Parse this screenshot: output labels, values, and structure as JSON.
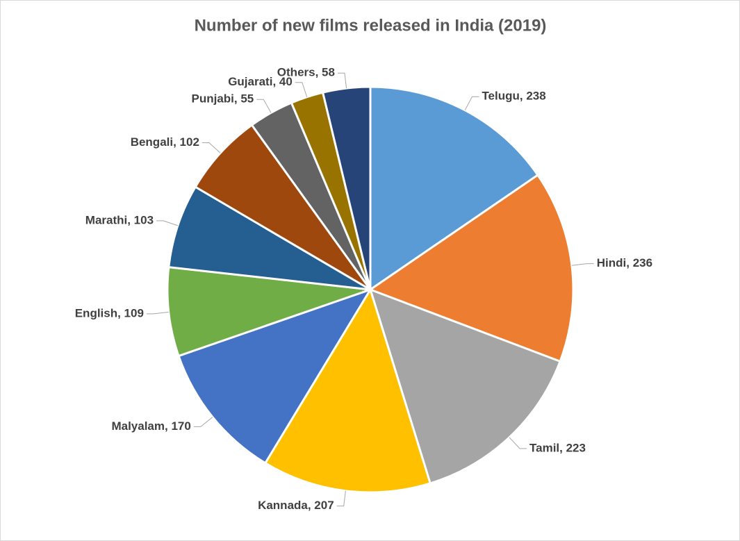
{
  "chart_data": {
    "type": "pie",
    "title": "Number of new films released in India (2019)",
    "values": [
      238,
      236,
      223,
      207,
      170,
      109,
      103,
      102,
      55,
      40,
      58
    ],
    "value_labels": [
      "Telugu, 238",
      "Hindi, 236",
      "Tamil, 223",
      "Kannada, 207",
      "Malyalam, 170",
      "English, 109",
      "Marathi, 103",
      "Bengali, 102",
      "Punjabi, 55",
      "Gujarati, 40",
      "Others, 58"
    ],
    "colors": [
      "#5b9bd5",
      "#ed7d31",
      "#a5a5a5",
      "#ffc000",
      "#4472c4",
      "#70ad47",
      "#255e91",
      "#9e480e",
      "#636363",
      "#997300",
      "#264478"
    ]
  }
}
